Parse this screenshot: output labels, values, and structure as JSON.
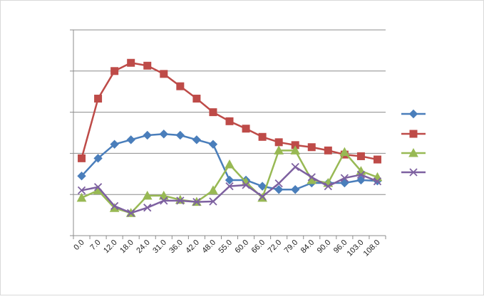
{
  "chart_data": {
    "type": "line",
    "title": "",
    "xlabel": "",
    "ylabel": "",
    "ylim": [
      0,
      5
    ],
    "grid": true,
    "legend": "right",
    "categories": [
      "0.0",
      "7.0",
      "12.0",
      "18.0",
      "24.0",
      "31.0",
      "36.0",
      "42.0",
      "48.0",
      "55.0",
      "60.0",
      "66.0",
      "72.0",
      "79.0",
      "84.0",
      "90.0",
      "96.0",
      "103.0",
      "108.0"
    ],
    "series": [
      {
        "color": "#4a7ebb",
        "marker": "diamond",
        "values": [
          1.45,
          1.88,
          2.22,
          2.33,
          2.44,
          2.47,
          2.44,
          2.33,
          2.22,
          1.35,
          1.35,
          1.2,
          1.12,
          1.12,
          1.28,
          1.28,
          1.28,
          1.35,
          1.33
        ]
      },
      {
        "color": "#be4b48",
        "marker": "square",
        "values": [
          1.88,
          3.33,
          4.0,
          4.2,
          4.13,
          3.93,
          3.63,
          3.33,
          3.0,
          2.78,
          2.6,
          2.4,
          2.27,
          2.2,
          2.15,
          2.07,
          1.97,
          1.93,
          1.85
        ]
      },
      {
        "color": "#98b954",
        "marker": "triangle",
        "values": [
          0.92,
          1.1,
          0.67,
          0.55,
          0.97,
          0.97,
          0.87,
          0.82,
          1.1,
          1.73,
          1.3,
          0.92,
          2.07,
          2.07,
          1.35,
          1.28,
          2.03,
          1.57,
          1.42
        ]
      },
      {
        "color": "#7d60a0",
        "marker": "x",
        "values": [
          1.1,
          1.18,
          0.72,
          0.55,
          0.68,
          0.85,
          0.85,
          0.82,
          0.83,
          1.2,
          1.23,
          0.95,
          1.27,
          1.67,
          1.42,
          1.2,
          1.4,
          1.48,
          1.32
        ]
      }
    ]
  }
}
